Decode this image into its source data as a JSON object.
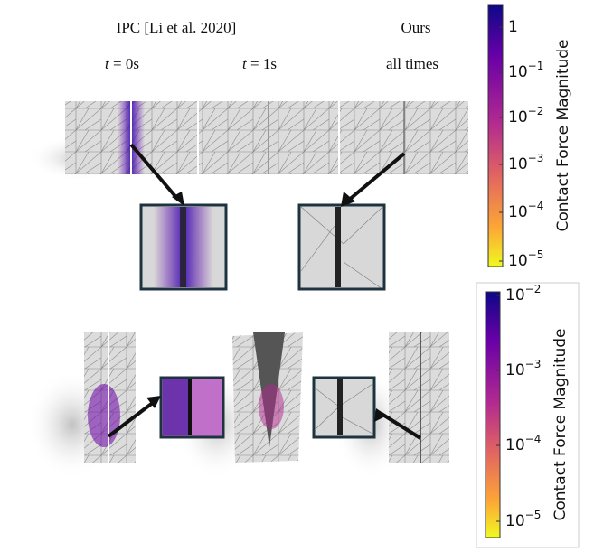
{
  "header": {
    "ipc": "IPC [Li et al. 2020]",
    "ours": "Ours",
    "t0": {
      "var": "t",
      "rest": " = 0s"
    },
    "t1": {
      "var": "t",
      "rest": " = 1s"
    },
    "all": "all times"
  },
  "colorbars": [
    {
      "label": "Contact Force Magnitude",
      "ticks": [
        {
          "label": "1"
        },
        {
          "base": "10",
          "exp": "−1"
        },
        {
          "base": "10",
          "exp": "−2"
        },
        {
          "base": "10",
          "exp": "−3"
        },
        {
          "base": "10",
          "exp": "−4"
        },
        {
          "base": "10",
          "exp": "−5"
        }
      ]
    },
    {
      "label": "Contact Force Magnitude",
      "ticks": [
        {
          "base": "10",
          "exp": "−2"
        },
        {
          "base": "10",
          "exp": "−3"
        },
        {
          "base": "10",
          "exp": "−4"
        },
        {
          "base": "10",
          "exp": "−5"
        }
      ]
    }
  ]
}
